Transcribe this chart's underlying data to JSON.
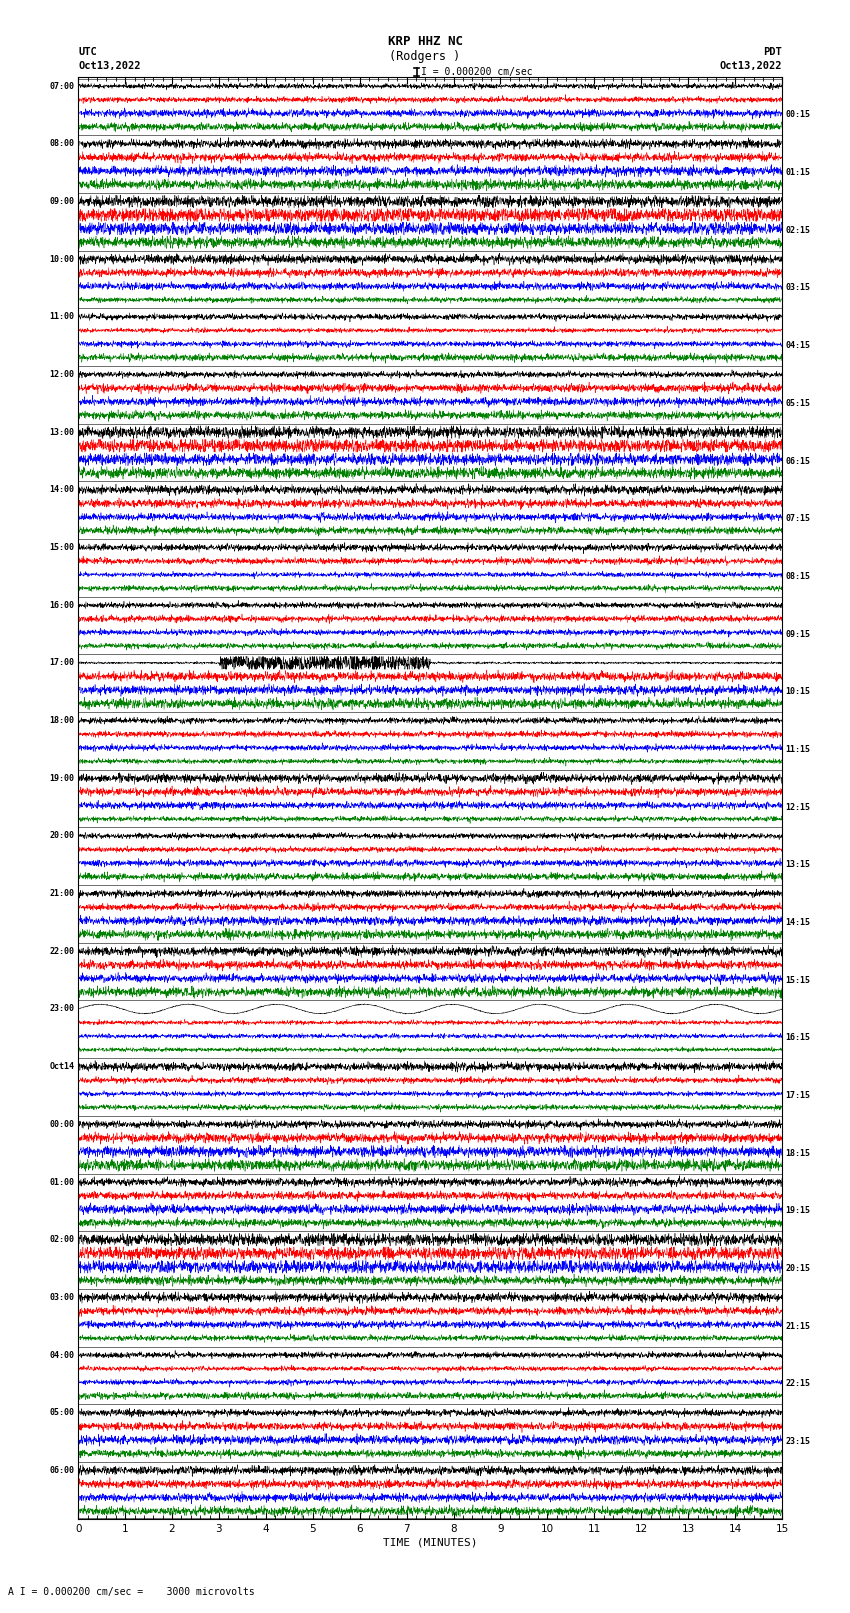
{
  "title_line1": "KRP HHZ NC",
  "title_line2": "(Rodgers )",
  "scale_label": "I = 0.000200 cm/sec",
  "bottom_label": "A I = 0.000200 cm/sec =    3000 microvolts",
  "xlabel": "TIME (MINUTES)",
  "left_header_line1": "UTC",
  "left_header_line2": "Oct13,2022",
  "right_header_line1": "PDT",
  "right_header_line2": "Oct13,2022",
  "left_times_utc": [
    "07:00",
    "08:00",
    "09:00",
    "10:00",
    "11:00",
    "12:00",
    "13:00",
    "14:00",
    "15:00",
    "16:00",
    "17:00",
    "18:00",
    "19:00",
    "20:00",
    "21:00",
    "22:00",
    "23:00",
    "Oct14",
    "00:00",
    "01:00",
    "02:00",
    "03:00",
    "04:00",
    "05:00",
    "06:00"
  ],
  "right_times_pdt": [
    "00:15",
    "01:15",
    "02:15",
    "03:15",
    "04:15",
    "05:15",
    "06:15",
    "07:15",
    "08:15",
    "09:15",
    "10:15",
    "11:15",
    "12:15",
    "13:15",
    "14:15",
    "15:15",
    "16:15",
    "17:15",
    "18:15",
    "19:15",
    "20:15",
    "21:15",
    "22:15",
    "23:15"
  ],
  "colors": [
    "black",
    "red",
    "blue",
    "green"
  ],
  "num_rows": 25,
  "traces_per_row": 4,
  "fig_width": 8.5,
  "fig_height": 16.13,
  "bg_color": "white",
  "xmin": 0,
  "xmax": 15,
  "earthquake_row": 10,
  "large_noise_rows": [
    22
  ],
  "sinusoidal_row": 16
}
